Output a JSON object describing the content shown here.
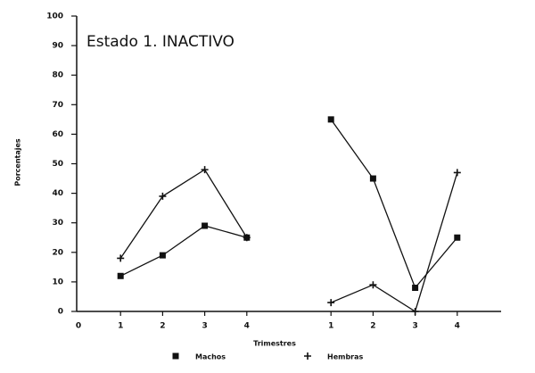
{
  "chart_data": {
    "type": "line",
    "annotation": "Estado 1. INACTIVO",
    "ylabel": "Porcentajes",
    "xlabel": "Trimestres",
    "categories": [
      "0",
      "1",
      "2",
      "3",
      "4",
      null,
      "1",
      "2",
      "3",
      "4"
    ],
    "series": [
      {
        "name": "Machos",
        "color": "#111111",
        "marker": "square",
        "values": [
          null,
          12,
          19,
          29,
          25,
          null,
          65,
          45,
          8,
          25
        ]
      },
      {
        "name": "Hembras",
        "color": "#111111",
        "marker": "plus",
        "values": [
          null,
          18,
          39,
          48,
          25,
          null,
          3,
          9,
          0,
          47
        ]
      }
    ],
    "ylim": [
      0,
      100
    ],
    "yticks": [
      0,
      10,
      20,
      30,
      40,
      50,
      60,
      70,
      80,
      90,
      100
    ]
  }
}
